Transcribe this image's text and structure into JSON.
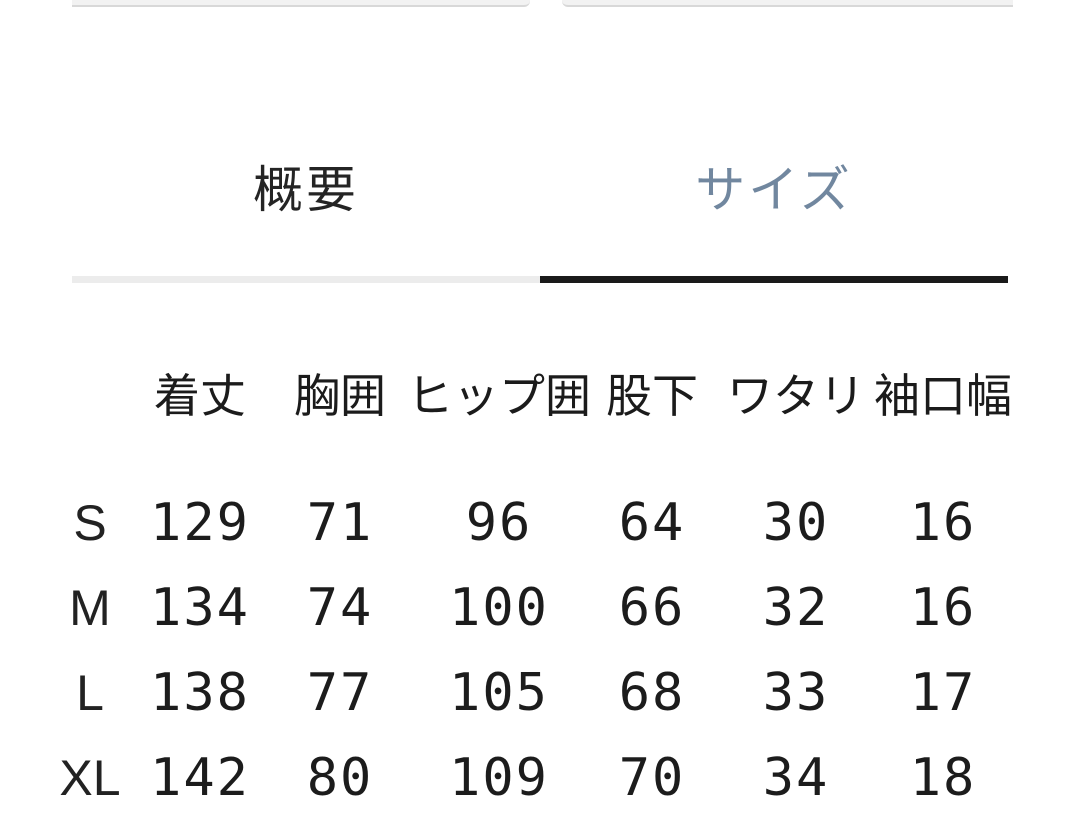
{
  "colors": {
    "active_tab_text": "#71879f",
    "inactive_tab_text": "#242424",
    "active_tab_indicator": "#1a1a1a",
    "inactive_tab_indicator": "#ececec",
    "table_text": "#1c1c1c",
    "top_card_edge": "#f2f2f2"
  },
  "tabs": [
    {
      "label": "概要",
      "active": false
    },
    {
      "label": "サイズ",
      "active": true
    }
  ],
  "size_table": {
    "columns": [
      "着丈",
      "胸囲",
      "ヒップ囲",
      "股下",
      "ワタリ",
      "袖口幅"
    ],
    "rows": [
      {
        "size": "S",
        "values": [
          "129",
          "71",
          "96",
          "64",
          "30",
          "16"
        ]
      },
      {
        "size": "M",
        "values": [
          "134",
          "74",
          "100",
          "66",
          "32",
          "16"
        ]
      },
      {
        "size": "L",
        "values": [
          "138",
          "77",
          "105",
          "68",
          "33",
          "17"
        ]
      },
      {
        "size": "XL",
        "values": [
          "142",
          "80",
          "109",
          "70",
          "34",
          "18"
        ]
      }
    ]
  }
}
